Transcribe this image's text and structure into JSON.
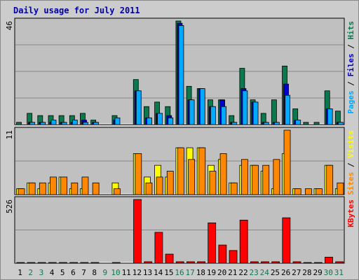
{
  "chart_data": {
    "type": "bar",
    "title": "Daily usage for July 2011",
    "categories": [
      "1",
      "2",
      "3",
      "4",
      "5",
      "6",
      "7",
      "8",
      "9",
      "10",
      "11",
      "12",
      "13",
      "14",
      "15",
      "16",
      "17",
      "18",
      "19",
      "20",
      "21",
      "22",
      "23",
      "24",
      "25",
      "26",
      "27",
      "28",
      "29",
      "30",
      "31"
    ],
    "weekend_days": [
      "2",
      "3",
      "9",
      "10",
      "16",
      "17",
      "23",
      "24",
      "30",
      "31"
    ],
    "panels": [
      {
        "id": "hits-files-pages",
        "ymax_label": "46",
        "ymax": 46,
        "axis_label_parts": [
          {
            "text": "Pages",
            "color": "#00aaff"
          },
          {
            "text": " / ",
            "color": "#000000"
          },
          {
            "text": "Files",
            "color": "#0000cc"
          },
          {
            "text": " / ",
            "color": "#000000"
          },
          {
            "text": "Hits",
            "color": "#0a7a4e"
          }
        ],
        "series": [
          {
            "name": "Hits",
            "color": "#0a7a4e",
            "values": [
              1,
              5,
              4,
              4,
              4,
              4,
              5,
              2,
              0,
              4,
              0,
              20,
              8,
              10,
              8,
              46,
              17,
              16,
              11,
              11,
              4,
              25,
              11,
              5,
              11,
              26,
              7,
              1,
              1,
              15,
              6
            ]
          },
          {
            "name": "Files",
            "color": "#0000cc",
            "values": [
              0,
              1,
              1,
              1,
              1,
              1,
              2,
              1,
              0,
              2,
              0,
              15,
              3,
              5,
              4,
              45,
              11,
              16,
              8,
              11,
              1,
              16,
              10,
              1,
              1,
              18,
              2,
              0,
              0,
              7,
              1
            ]
          },
          {
            "name": "Pages",
            "color": "#00aaff",
            "values": [
              0,
              1,
              1,
              2,
              1,
              2,
              1,
              1,
              0,
              3,
              0,
              15,
              3,
              5,
              3,
              44,
              11,
              16,
              8,
              8,
              1,
              15,
              10,
              1,
              1,
              13,
              2,
              0,
              0,
              7,
              1
            ]
          }
        ]
      },
      {
        "id": "visits-sites",
        "ymax_label": "11",
        "ymax": 11,
        "axis_label_parts": [
          {
            "text": "Sites",
            "color": "#ff8800"
          },
          {
            "text": " / ",
            "color": "#000000"
          },
          {
            "text": "Visits",
            "color": "#ffff00"
          }
        ],
        "series": [
          {
            "name": "Visits",
            "color": "#ffff00",
            "values": [
              1,
              2,
              1,
              2,
              3,
              1,
              1,
              0,
              0,
              2,
              0,
              7,
              3,
              5,
              3,
              8,
              8,
              8,
              5,
              6,
              2,
              5,
              5,
              4,
              1,
              7,
              1,
              0,
              1,
              5,
              1
            ]
          },
          {
            "name": "Sites",
            "color": "#ff8800",
            "values": [
              1,
              2,
              2,
              3,
              3,
              2,
              3,
              2,
              0,
              1,
              0,
              7,
              2,
              3,
              4,
              8,
              6,
              8,
              4,
              7,
              2,
              6,
              5,
              5,
              6,
              11,
              1,
              1,
              1,
              5,
              2
            ]
          }
        ]
      },
      {
        "id": "kbytes",
        "ymax_label": "526",
        "ymax": 526,
        "axis_label_parts": [
          {
            "text": "KBytes",
            "color": "#ff0000"
          }
        ],
        "series": [
          {
            "name": "KBytes",
            "color": "#ff0000",
            "values": [
              5,
              5,
              5,
              5,
              5,
              5,
              5,
              5,
              0,
              5,
              0,
              526,
              12,
              255,
              75,
              12,
              12,
              12,
              333,
              150,
              105,
              356,
              12,
              12,
              12,
              375,
              12,
              5,
              5,
              50,
              12
            ]
          }
        ]
      }
    ]
  }
}
